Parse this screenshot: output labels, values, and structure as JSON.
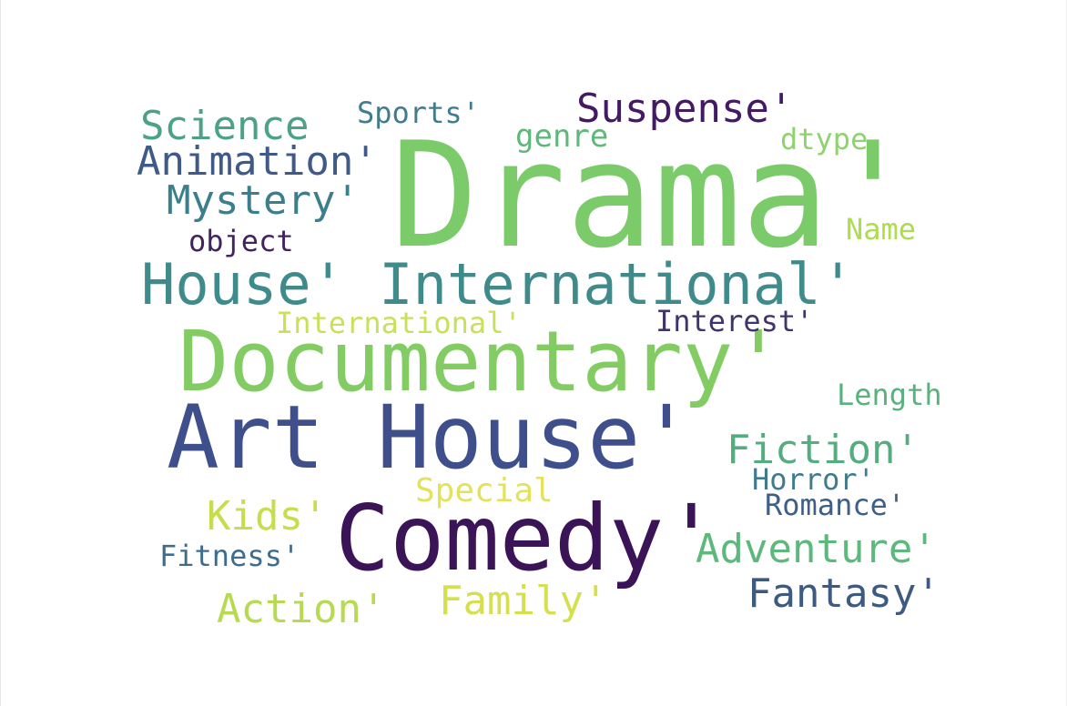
{
  "wordcloud": {
    "words": [
      {
        "text": "Drama'",
        "color": "#7ccb6a"
      },
      {
        "text": "House' International'",
        "color": "#3f8b8b"
      },
      {
        "text": "Documentary'",
        "color": "#82cc63"
      },
      {
        "text": "Art House'",
        "color": "#3f4f8c"
      },
      {
        "text": "Comedy'",
        "color": "#3b1458"
      },
      {
        "text": "Suspense'",
        "color": "#431a63"
      },
      {
        "text": "Science",
        "color": "#4ca384"
      },
      {
        "text": "Animation'",
        "color": "#3f5a88"
      },
      {
        "text": "Mystery'",
        "color": "#3b7f8c"
      },
      {
        "text": "Sports'",
        "color": "#3f7d8d"
      },
      {
        "text": "genre",
        "color": "#5fb77a"
      },
      {
        "text": "dtype",
        "color": "#8fd26e"
      },
      {
        "text": "Name",
        "color": "#aedc4f"
      },
      {
        "text": "object",
        "color": "#42235f"
      },
      {
        "text": "International'",
        "color": "#c8e15b"
      },
      {
        "text": "Interest'",
        "color": "#41346b"
      },
      {
        "text": "Length",
        "color": "#58b27c"
      },
      {
        "text": "Fiction'",
        "color": "#54ad7f"
      },
      {
        "text": "Horror'",
        "color": "#3f7a8d"
      },
      {
        "text": "Special",
        "color": "#e2e25c"
      },
      {
        "text": "Romance'",
        "color": "#3f5f88"
      },
      {
        "text": "Kids'",
        "color": "#c4de4c"
      },
      {
        "text": "Adventure'",
        "color": "#5cb87b"
      },
      {
        "text": "Fitness'",
        "color": "#3f6c8c"
      },
      {
        "text": "Fantasy'",
        "color": "#3d5a83"
      },
      {
        "text": "Family'",
        "color": "#d4e04d"
      },
      {
        "text": "Action'",
        "color": "#b8da53"
      }
    ]
  }
}
